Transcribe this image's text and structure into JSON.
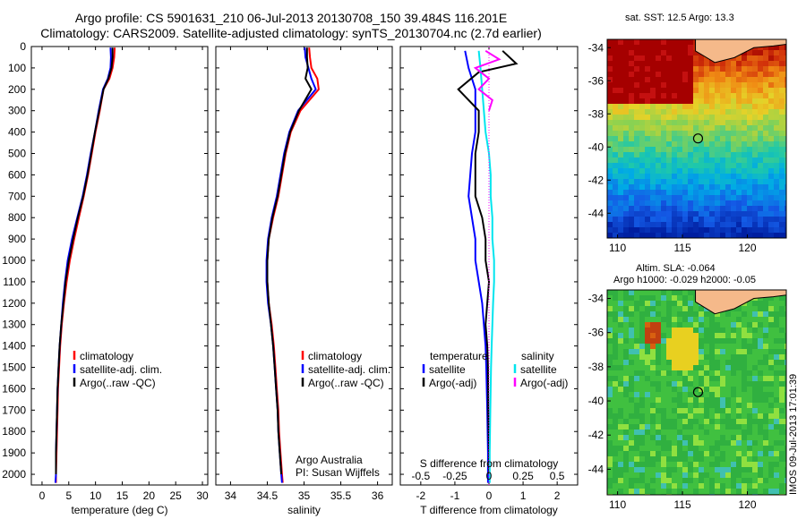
{
  "header": {
    "line1": "Argo profile: CS 5901631_210 06-Jul-2013 20130708_150 39.484S 116.201E",
    "line2": "Climatology: CARS2009. Satellite-adjusted climatology: synTS_20130704.nc (2.7d earlier)"
  },
  "side_text": "IMOS 09-Jul-2013 17:01:39",
  "colors": {
    "climatology": "#ff0000",
    "satellite": "#0000ff",
    "argo": "#000000",
    "sal_satellite": "#00e5ee",
    "sal_argo": "#ff00ff",
    "land": "#f5b98a"
  },
  "chart_data": [
    {
      "type": "line",
      "id": "temperature",
      "xlabel": "temperature (deg C)",
      "xlim": [
        -2,
        31
      ],
      "xticks": [
        0,
        5,
        10,
        15,
        20,
        25,
        30
      ],
      "ylim": [
        0,
        2050
      ],
      "yticks": [
        0,
        100,
        200,
        300,
        400,
        500,
        600,
        700,
        800,
        900,
        1000,
        1100,
        1200,
        1300,
        1400,
        1500,
        1600,
        1700,
        1800,
        1900,
        2000
      ],
      "legend": [
        "climatology",
        "satellite-adj. clim.",
        "Argo(..raw -QC)"
      ],
      "series": [
        {
          "name": "climatology",
          "color": "#ff0000",
          "points": [
            [
              13.6,
              5
            ],
            [
              13.5,
              50
            ],
            [
              13.2,
              100
            ],
            [
              12.6,
              150
            ],
            [
              11.5,
              200
            ],
            [
              10.8,
              300
            ],
            [
              10.0,
              400
            ],
            [
              9.3,
              500
            ],
            [
              8.6,
              600
            ],
            [
              7.8,
              700
            ],
            [
              6.9,
              800
            ],
            [
              6.0,
              900
            ],
            [
              5.2,
              1000
            ],
            [
              4.6,
              1100
            ],
            [
              4.1,
              1200
            ],
            [
              3.7,
              1300
            ],
            [
              3.4,
              1400
            ],
            [
              3.2,
              1500
            ],
            [
              3.0,
              1600
            ],
            [
              2.9,
              1700
            ],
            [
              2.8,
              1800
            ],
            [
              2.7,
              1900
            ],
            [
              2.6,
              2000
            ],
            [
              2.6,
              2040
            ]
          ]
        },
        {
          "name": "satellite-adj. clim.",
          "color": "#0000ff",
          "points": [
            [
              12.8,
              5
            ],
            [
              12.9,
              50
            ],
            [
              12.8,
              100
            ],
            [
              12.3,
              150
            ],
            [
              11.4,
              200
            ],
            [
              10.6,
              300
            ],
            [
              9.9,
              400
            ],
            [
              9.1,
              500
            ],
            [
              8.4,
              600
            ],
            [
              7.6,
              700
            ],
            [
              6.6,
              800
            ],
            [
              5.6,
              900
            ],
            [
              4.8,
              1000
            ],
            [
              4.3,
              1100
            ],
            [
              3.9,
              1200
            ],
            [
              3.6,
              1300
            ],
            [
              3.3,
              1400
            ],
            [
              3.1,
              1500
            ],
            [
              2.9,
              1600
            ],
            [
              2.8,
              1700
            ],
            [
              2.7,
              1800
            ],
            [
              2.6,
              1900
            ],
            [
              2.6,
              2000
            ],
            [
              2.5,
              2040
            ]
          ]
        },
        {
          "name": "Argo(..raw -QC)",
          "color": "#000000",
          "points": [
            [
              13.2,
              5
            ],
            [
              13.2,
              50
            ],
            [
              13.0,
              100
            ],
            [
              12.4,
              150
            ],
            [
              11.5,
              200
            ],
            [
              10.7,
              300
            ],
            [
              9.9,
              400
            ],
            [
              9.2,
              500
            ],
            [
              8.5,
              600
            ],
            [
              7.7,
              700
            ],
            [
              6.7,
              800
            ],
            [
              5.8,
              900
            ],
            [
              5.0,
              1000
            ],
            [
              4.4,
              1100
            ],
            [
              4.0,
              1200
            ],
            [
              3.6,
              1300
            ],
            [
              3.3,
              1400
            ],
            [
              3.1,
              1500
            ],
            [
              2.9,
              1600
            ],
            [
              2.8,
              1700
            ],
            [
              2.7,
              1800
            ],
            [
              2.6,
              1900
            ],
            [
              2.6,
              2000
            ]
          ]
        }
      ]
    },
    {
      "type": "line",
      "id": "salinity",
      "xlabel": "salinity",
      "xlim": [
        33.8,
        36.2
      ],
      "xticks": [
        34,
        34.5,
        35,
        35.5,
        36
      ],
      "ylim": [
        0,
        2050
      ],
      "legend": [
        "climatology",
        "satellite-adj. clim.",
        "Argo(..raw -QC)"
      ],
      "annotations": [
        "Argo Australia",
        "PI: Susan Wijffels"
      ],
      "series": [
        {
          "name": "climatology",
          "color": "#ff0000",
          "points": [
            [
              35.07,
              5
            ],
            [
              35.08,
              50
            ],
            [
              35.1,
              100
            ],
            [
              35.18,
              150
            ],
            [
              35.2,
              200
            ],
            [
              34.95,
              300
            ],
            [
              34.82,
              400
            ],
            [
              34.75,
              500
            ],
            [
              34.7,
              600
            ],
            [
              34.65,
              700
            ],
            [
              34.58,
              800
            ],
            [
              34.52,
              900
            ],
            [
              34.5,
              1000
            ],
            [
              34.5,
              1100
            ],
            [
              34.52,
              1200
            ],
            [
              34.56,
              1300
            ],
            [
              34.59,
              1400
            ],
            [
              34.61,
              1500
            ],
            [
              34.63,
              1600
            ],
            [
              34.65,
              1700
            ],
            [
              34.66,
              1800
            ],
            [
              34.68,
              1900
            ],
            [
              34.7,
              2000
            ],
            [
              34.71,
              2040
            ]
          ]
        },
        {
          "name": "satellite-adj. clim.",
          "color": "#0000ff",
          "points": [
            [
              35.01,
              5
            ],
            [
              35.02,
              50
            ],
            [
              35.06,
              100
            ],
            [
              35.1,
              150
            ],
            [
              35.16,
              200
            ],
            [
              34.92,
              300
            ],
            [
              34.8,
              400
            ],
            [
              34.73,
              500
            ],
            [
              34.68,
              600
            ],
            [
              34.63,
              700
            ],
            [
              34.56,
              800
            ],
            [
              34.51,
              900
            ],
            [
              34.49,
              1000
            ],
            [
              34.49,
              1100
            ],
            [
              34.51,
              1200
            ],
            [
              34.55,
              1300
            ],
            [
              34.58,
              1400
            ],
            [
              34.6,
              1500
            ],
            [
              34.62,
              1600
            ],
            [
              34.64,
              1700
            ],
            [
              34.65,
              1800
            ],
            [
              34.67,
              1900
            ],
            [
              34.69,
              2000
            ],
            [
              34.7,
              2040
            ]
          ]
        },
        {
          "name": "Argo(..raw -QC)",
          "color": "#000000",
          "points": [
            [
              35.04,
              5
            ],
            [
              35.04,
              50
            ],
            [
              35.05,
              100
            ],
            [
              35.02,
              150
            ],
            [
              35.1,
              200
            ],
            [
              34.93,
              300
            ],
            [
              34.81,
              400
            ],
            [
              34.74,
              500
            ],
            [
              34.69,
              600
            ],
            [
              34.64,
              700
            ],
            [
              34.57,
              800
            ],
            [
              34.52,
              900
            ],
            [
              34.5,
              1000
            ],
            [
              34.5,
              1100
            ],
            [
              34.52,
              1200
            ],
            [
              34.55,
              1300
            ],
            [
              34.58,
              1400
            ],
            [
              34.6,
              1500
            ],
            [
              34.62,
              1600
            ],
            [
              34.64,
              1700
            ],
            [
              34.65,
              1800
            ],
            [
              34.67,
              1900
            ],
            [
              34.69,
              2000
            ]
          ]
        }
      ]
    },
    {
      "type": "line",
      "id": "difference",
      "xlabel": "T difference from climatology",
      "xlabel_top": "S difference from climatology",
      "xlim": [
        -2.6,
        2.6
      ],
      "xticks": [
        -2,
        -1,
        0,
        1,
        2
      ],
      "s_ticks": [
        "-0.5",
        "-0.25",
        "0",
        "0.25",
        "0.5"
      ],
      "s_tick_positions": [
        -2.0,
        -1.0,
        0,
        1.0,
        2.0
      ],
      "ylim": [
        0,
        2050
      ],
      "legend_t": [
        "temperature",
        "satellite",
        "Argo(-adj)"
      ],
      "legend_s": [
        "salinity",
        "satellite",
        "Argo(-adj)"
      ],
      "series": [
        {
          "name": "satellite",
          "color": "#0000ff",
          "points": [
            [
              -0.7,
              20
            ],
            [
              -0.6,
              100
            ],
            [
              -0.4,
              200
            ],
            [
              -0.4,
              300
            ],
            [
              -0.4,
              400
            ],
            [
              -0.5,
              500
            ],
            [
              -0.55,
              600
            ],
            [
              -0.6,
              700
            ],
            [
              -0.5,
              800
            ],
            [
              -0.4,
              900
            ],
            [
              -0.4,
              1000
            ],
            [
              -0.3,
              1100
            ],
            [
              -0.2,
              1200
            ],
            [
              -0.15,
              1300
            ],
            [
              -0.1,
              1400
            ],
            [
              -0.08,
              1500
            ],
            [
              -0.05,
              1700
            ],
            [
              -0.03,
              1900
            ],
            [
              -0.03,
              2040
            ]
          ]
        },
        {
          "name": "Argo(-adj)",
          "color": "#000000",
          "points": [
            [
              0.4,
              20
            ],
            [
              0.8,
              80
            ],
            [
              -0.3,
              120
            ],
            [
              -0.9,
              200
            ],
            [
              -0.3,
              300
            ],
            [
              -0.3,
              400
            ],
            [
              -0.4,
              500
            ],
            [
              -0.4,
              600
            ],
            [
              -0.4,
              700
            ],
            [
              -0.2,
              800
            ],
            [
              -0.1,
              900
            ],
            [
              -0.1,
              1000
            ],
            [
              0.0,
              1100
            ],
            [
              -0.05,
              1200
            ],
            [
              -0.1,
              1300
            ],
            [
              -0.05,
              1400
            ],
            [
              -0.03,
              1500
            ],
            [
              -0.02,
              1700
            ],
            [
              0.0,
              1900
            ],
            [
              0.0,
              2000
            ]
          ]
        },
        {
          "name": "satellite",
          "color": "#00e5ee",
          "points": [
            [
              -0.3,
              20
            ],
            [
              -0.25,
              100
            ],
            [
              -0.2,
              200
            ],
            [
              -0.15,
              300
            ],
            [
              -0.1,
              400
            ],
            [
              0.0,
              500
            ],
            [
              0.05,
              600
            ],
            [
              0.05,
              700
            ],
            [
              0.1,
              800
            ],
            [
              0.1,
              900
            ],
            [
              0.15,
              1000
            ],
            [
              0.15,
              1100
            ],
            [
              0.12,
              1200
            ],
            [
              0.1,
              1300
            ],
            [
              0.08,
              1400
            ],
            [
              0.06,
              1500
            ],
            [
              0.04,
              1700
            ],
            [
              0.02,
              1900
            ],
            [
              0.02,
              2040
            ]
          ]
        },
        {
          "name": "Argo(-adj)",
          "color": "#ff00ff",
          "points": [
            [
              -0.1,
              20
            ],
            [
              0.3,
              60
            ],
            [
              -0.4,
              100
            ],
            [
              0.0,
              150
            ],
            [
              -0.3,
              200
            ],
            [
              0.1,
              250
            ],
            [
              0.0,
              300
            ]
          ]
        }
      ]
    },
    {
      "type": "heatmap",
      "id": "sst_map",
      "title": "sat. SST: 12.5 Argo: 13.3",
      "xticks": [
        110,
        115,
        120
      ],
      "yticks": [
        -34,
        -36,
        -38,
        -40,
        -42,
        -44
      ],
      "xlim": [
        109.2,
        123
      ],
      "ylim": [
        -45.5,
        -33.5
      ],
      "marker": [
        116.201,
        -39.484
      ]
    },
    {
      "type": "heatmap",
      "id": "sla_map",
      "title": "Altim. SLA: -0.064",
      "subtitle": "Argo h1000: -0.029 h2000: -0.05",
      "xticks": [
        110,
        115,
        120
      ],
      "yticks": [
        -34,
        -36,
        -38,
        -40,
        -42,
        -44
      ],
      "xlim": [
        109.2,
        123
      ],
      "ylim": [
        -45.5,
        -33.5
      ],
      "marker": [
        116.201,
        -39.484
      ]
    }
  ]
}
